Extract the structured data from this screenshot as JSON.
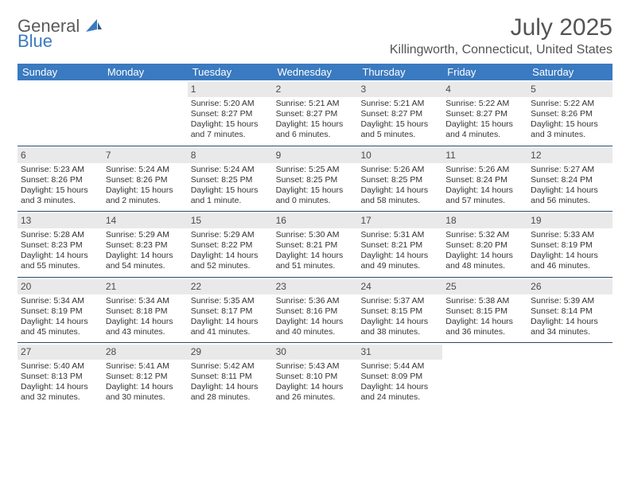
{
  "logo": {
    "word1": "General",
    "word2": "Blue"
  },
  "title": "July 2025",
  "location": "Killingworth, Connecticut, United States",
  "colors": {
    "header_bg": "#3a7ac0",
    "header_text": "#ffffff",
    "daynum_bg": "#e9e9e9",
    "week_border": "#2a4a6a",
    "body_text": "#333333",
    "logo_gray": "#5a5a5a",
    "logo_blue": "#3a7ac0",
    "page_bg": "#ffffff"
  },
  "dayNames": [
    "Sunday",
    "Monday",
    "Tuesday",
    "Wednesday",
    "Thursday",
    "Friday",
    "Saturday"
  ],
  "days": [
    {
      "n": 1,
      "sunrise": "5:20 AM",
      "sunset": "8:27 PM",
      "daylight": "15 hours and 7 minutes."
    },
    {
      "n": 2,
      "sunrise": "5:21 AM",
      "sunset": "8:27 PM",
      "daylight": "15 hours and 6 minutes."
    },
    {
      "n": 3,
      "sunrise": "5:21 AM",
      "sunset": "8:27 PM",
      "daylight": "15 hours and 5 minutes."
    },
    {
      "n": 4,
      "sunrise": "5:22 AM",
      "sunset": "8:27 PM",
      "daylight": "15 hours and 4 minutes."
    },
    {
      "n": 5,
      "sunrise": "5:22 AM",
      "sunset": "8:26 PM",
      "daylight": "15 hours and 3 minutes."
    },
    {
      "n": 6,
      "sunrise": "5:23 AM",
      "sunset": "8:26 PM",
      "daylight": "15 hours and 3 minutes."
    },
    {
      "n": 7,
      "sunrise": "5:24 AM",
      "sunset": "8:26 PM",
      "daylight": "15 hours and 2 minutes."
    },
    {
      "n": 8,
      "sunrise": "5:24 AM",
      "sunset": "8:25 PM",
      "daylight": "15 hours and 1 minute."
    },
    {
      "n": 9,
      "sunrise": "5:25 AM",
      "sunset": "8:25 PM",
      "daylight": "15 hours and 0 minutes."
    },
    {
      "n": 10,
      "sunrise": "5:26 AM",
      "sunset": "8:25 PM",
      "daylight": "14 hours and 58 minutes."
    },
    {
      "n": 11,
      "sunrise": "5:26 AM",
      "sunset": "8:24 PM",
      "daylight": "14 hours and 57 minutes."
    },
    {
      "n": 12,
      "sunrise": "5:27 AM",
      "sunset": "8:24 PM",
      "daylight": "14 hours and 56 minutes."
    },
    {
      "n": 13,
      "sunrise": "5:28 AM",
      "sunset": "8:23 PM",
      "daylight": "14 hours and 55 minutes."
    },
    {
      "n": 14,
      "sunrise": "5:29 AM",
      "sunset": "8:23 PM",
      "daylight": "14 hours and 54 minutes."
    },
    {
      "n": 15,
      "sunrise": "5:29 AM",
      "sunset": "8:22 PM",
      "daylight": "14 hours and 52 minutes."
    },
    {
      "n": 16,
      "sunrise": "5:30 AM",
      "sunset": "8:21 PM",
      "daylight": "14 hours and 51 minutes."
    },
    {
      "n": 17,
      "sunrise": "5:31 AM",
      "sunset": "8:21 PM",
      "daylight": "14 hours and 49 minutes."
    },
    {
      "n": 18,
      "sunrise": "5:32 AM",
      "sunset": "8:20 PM",
      "daylight": "14 hours and 48 minutes."
    },
    {
      "n": 19,
      "sunrise": "5:33 AM",
      "sunset": "8:19 PM",
      "daylight": "14 hours and 46 minutes."
    },
    {
      "n": 20,
      "sunrise": "5:34 AM",
      "sunset": "8:19 PM",
      "daylight": "14 hours and 45 minutes."
    },
    {
      "n": 21,
      "sunrise": "5:34 AM",
      "sunset": "8:18 PM",
      "daylight": "14 hours and 43 minutes."
    },
    {
      "n": 22,
      "sunrise": "5:35 AM",
      "sunset": "8:17 PM",
      "daylight": "14 hours and 41 minutes."
    },
    {
      "n": 23,
      "sunrise": "5:36 AM",
      "sunset": "8:16 PM",
      "daylight": "14 hours and 40 minutes."
    },
    {
      "n": 24,
      "sunrise": "5:37 AM",
      "sunset": "8:15 PM",
      "daylight": "14 hours and 38 minutes."
    },
    {
      "n": 25,
      "sunrise": "5:38 AM",
      "sunset": "8:15 PM",
      "daylight": "14 hours and 36 minutes."
    },
    {
      "n": 26,
      "sunrise": "5:39 AM",
      "sunset": "8:14 PM",
      "daylight": "14 hours and 34 minutes."
    },
    {
      "n": 27,
      "sunrise": "5:40 AM",
      "sunset": "8:13 PM",
      "daylight": "14 hours and 32 minutes."
    },
    {
      "n": 28,
      "sunrise": "5:41 AM",
      "sunset": "8:12 PM",
      "daylight": "14 hours and 30 minutes."
    },
    {
      "n": 29,
      "sunrise": "5:42 AM",
      "sunset": "8:11 PM",
      "daylight": "14 hours and 28 minutes."
    },
    {
      "n": 30,
      "sunrise": "5:43 AM",
      "sunset": "8:10 PM",
      "daylight": "14 hours and 26 minutes."
    },
    {
      "n": 31,
      "sunrise": "5:44 AM",
      "sunset": "8:09 PM",
      "daylight": "14 hours and 24 minutes."
    }
  ],
  "layout": {
    "firstDayOfWeek": 0,
    "startDayIndex": 2,
    "totalCells": 35,
    "cellFontSizePt": 8,
    "headerFontSizePt": 10
  },
  "labels": {
    "sunrise": "Sunrise:",
    "sunset": "Sunset:",
    "daylight": "Daylight:"
  }
}
